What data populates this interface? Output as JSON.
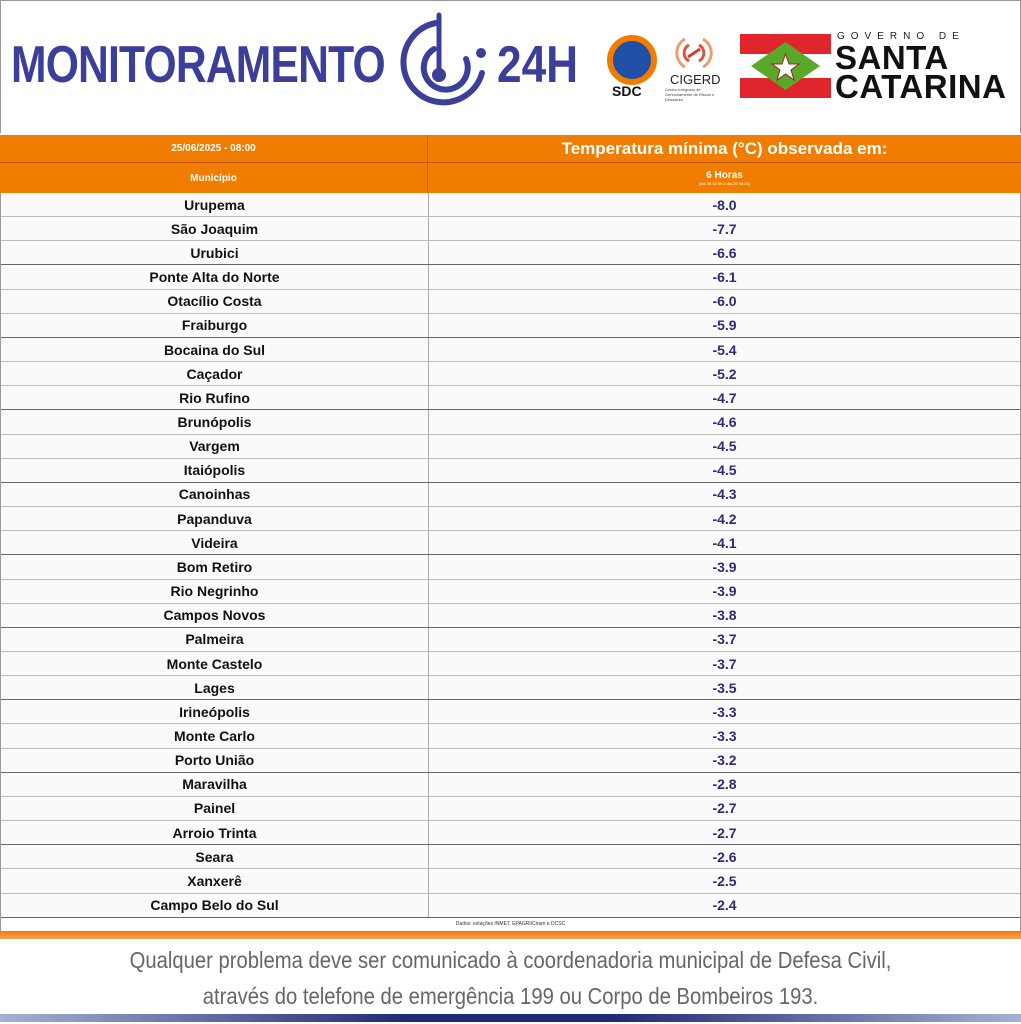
{
  "header": {
    "brand_text": "MONITORAMENTO",
    "brand_suffix": "24H",
    "logos": {
      "sdc": "SDC",
      "cigerd": "CIGERD",
      "cigerd_sub": "Centro Integrado de Gerenciamento de Riscos e Desastres",
      "gov_top": "GOVERNO DE",
      "gov_line1": "SANTA",
      "gov_line2": "CATARINA"
    },
    "brand_color": "#3b3f9a"
  },
  "table": {
    "date": "25/06/2025 - 08:00",
    "title": "Temperatura mínima (°C) observada em:",
    "col_municipio": "Município",
    "col_period": "6 Horas",
    "col_period_sub": "(dia 25 02:00 a dia 25 08:00)",
    "header_color": "#f07c00",
    "rows": [
      {
        "m": "Urupema",
        "v": "-8.0"
      },
      {
        "m": "São Joaquim",
        "v": "-7.7"
      },
      {
        "m": "Urubici",
        "v": "-6.6"
      },
      {
        "m": "Ponte Alta do Norte",
        "v": "-6.1"
      },
      {
        "m": "Otacílio Costa",
        "v": "-6.0"
      },
      {
        "m": "Fraiburgo",
        "v": "-5.9"
      },
      {
        "m": "Bocaina do Sul",
        "v": "-5.4"
      },
      {
        "m": "Caçador",
        "v": "-5.2"
      },
      {
        "m": "Rio Rufino",
        "v": "-4.7"
      },
      {
        "m": "Brunópolis",
        "v": "-4.6"
      },
      {
        "m": "Vargem",
        "v": "-4.5"
      },
      {
        "m": "Itaiópolis",
        "v": "-4.5"
      },
      {
        "m": "Canoinhas",
        "v": "-4.3"
      },
      {
        "m": "Papanduva",
        "v": "-4.2"
      },
      {
        "m": "Videira",
        "v": "-4.1"
      },
      {
        "m": "Bom Retiro",
        "v": "-3.9"
      },
      {
        "m": "Rio Negrinho",
        "v": "-3.9"
      },
      {
        "m": "Campos Novos",
        "v": "-3.8"
      },
      {
        "m": "Palmeira",
        "v": "-3.7"
      },
      {
        "m": "Monte Castelo",
        "v": "-3.7"
      },
      {
        "m": "Lages",
        "v": "-3.5"
      },
      {
        "m": "Irineópolis",
        "v": "-3.3"
      },
      {
        "m": "Monte Carlo",
        "v": "-3.3"
      },
      {
        "m": "Porto União",
        "v": "-3.2"
      },
      {
        "m": "Maravilha",
        "v": "-2.8"
      },
      {
        "m": "Painel",
        "v": "-2.7"
      },
      {
        "m": "Arroio Trinta",
        "v": "-2.7"
      },
      {
        "m": "Seara",
        "v": "-2.6"
      },
      {
        "m": "Xanxerê",
        "v": "-2.5"
      },
      {
        "m": "Campo Belo do Sul",
        "v": "-2.4"
      }
    ],
    "source": "Dados: estações INMET, EPAGRI/Ciram e DCSC"
  },
  "footer": {
    "line1": "Qualquer problema deve ser comunicado à coordenadoria municipal de Defesa Civil,",
    "line2": "através do telefone de emergência 199 ou Corpo de Bombeiros 193."
  }
}
